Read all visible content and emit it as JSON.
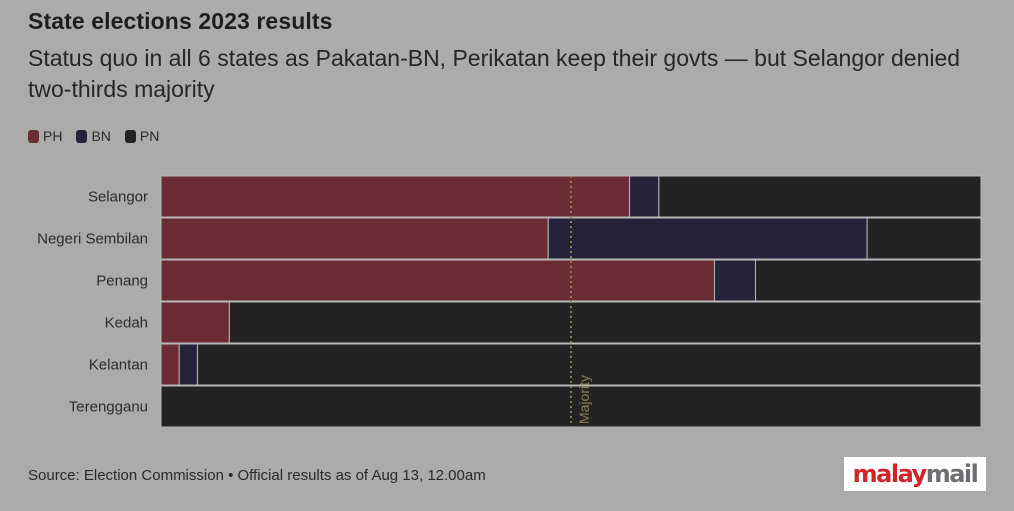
{
  "header": {
    "title": "State elections 2023 results",
    "subtitle": "Status quo in all 6 states as Pakatan-BN, Perikatan keep their govts — but Selangor denied two-thirds majority"
  },
  "legend": [
    {
      "label": "PH",
      "color": "#6b2d33"
    },
    {
      "label": "BN",
      "color": "#24233a"
    },
    {
      "label": "PN",
      "color": "#232325"
    }
  ],
  "footer": {
    "source": "Source: Election Commission • Official results as of Aug 13, 12.00am",
    "logo_red": "malay",
    "logo_grey": "mail"
  },
  "chart_data": {
    "type": "bar",
    "orientation": "horizontal",
    "stacked": true,
    "categories": [
      "Selangor",
      "Negeri Sembilan",
      "Penang",
      "Kedah",
      "Kelantan",
      "Terengganu"
    ],
    "series": [
      {
        "name": "PH",
        "color": "#6b2d33",
        "values": [
          32,
          17,
          27,
          3,
          1,
          0
        ]
      },
      {
        "name": "BN",
        "color": "#24233a",
        "values": [
          2,
          14,
          2,
          0,
          1,
          0
        ]
      },
      {
        "name": "PN",
        "color": "#232325",
        "values": [
          22,
          5,
          11,
          33,
          43,
          32
        ]
      }
    ],
    "units": "seats (share of state assembly)",
    "annotation": {
      "label": "Majority",
      "value_fraction": 0.5
    },
    "grid": false,
    "legend_position": "top-left"
  }
}
